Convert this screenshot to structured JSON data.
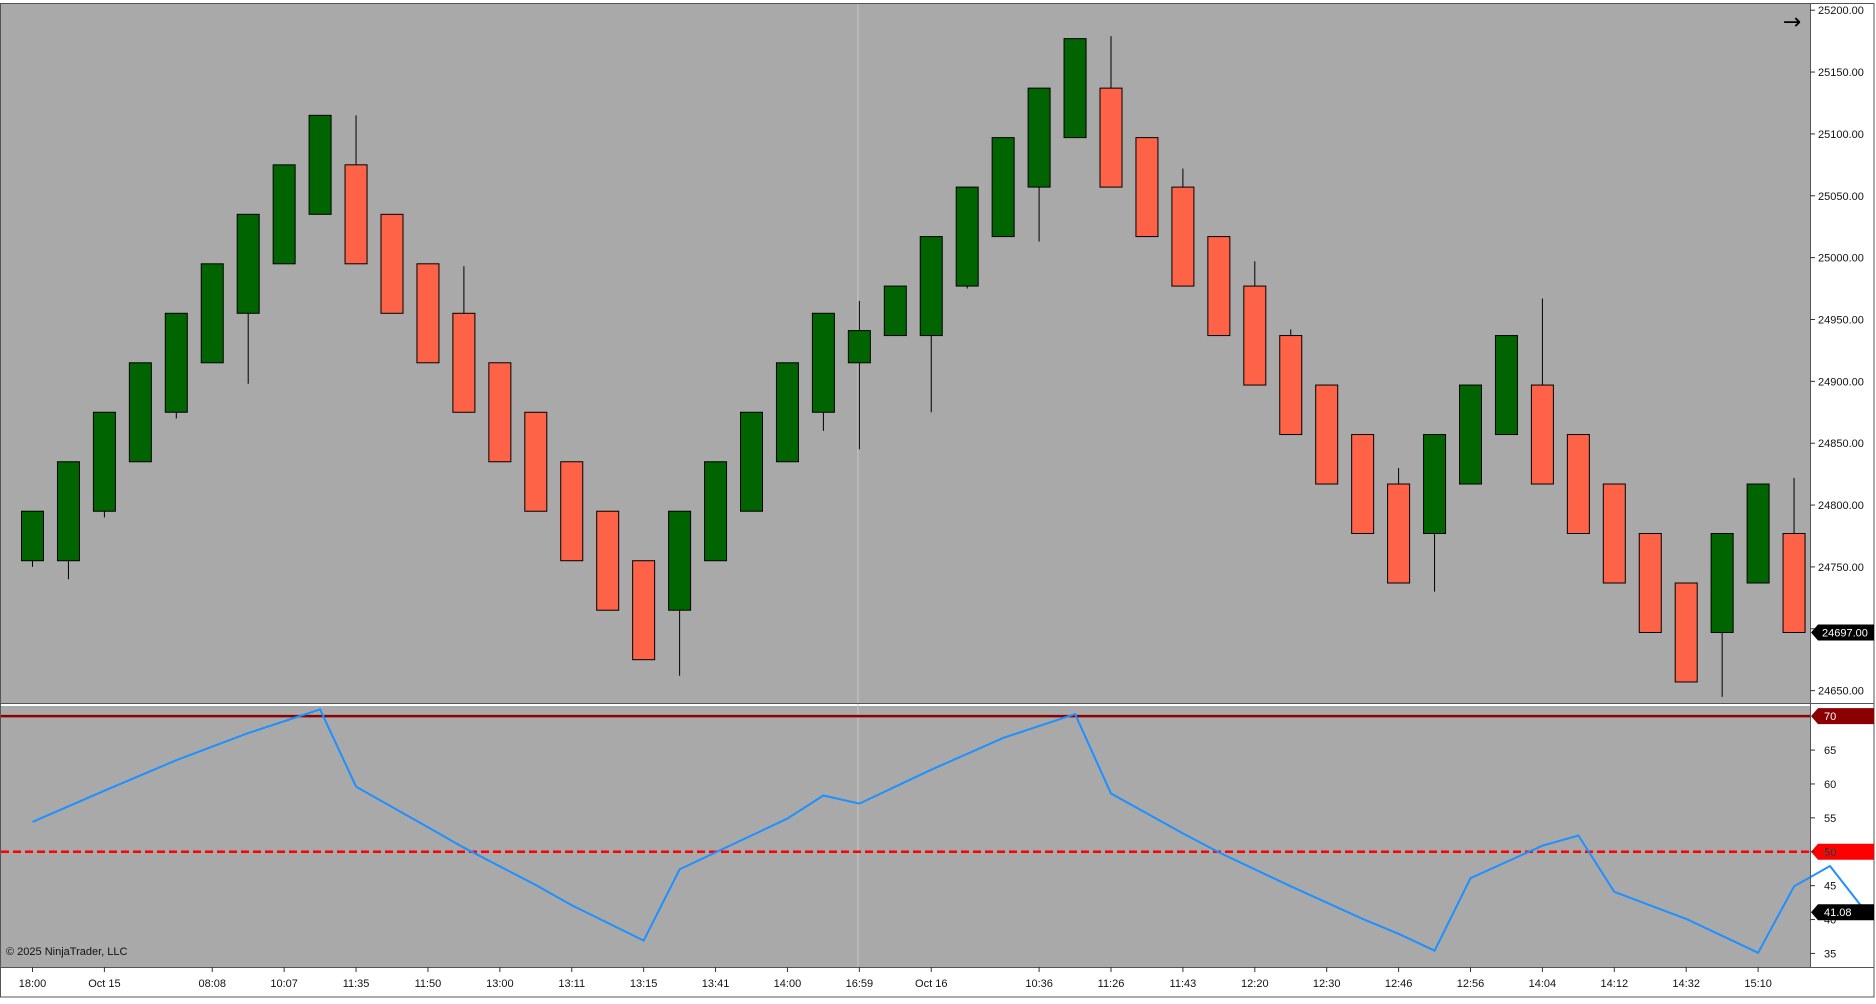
{
  "copyright": "© 2025 NinjaTrader, LLC",
  "nav_arrow_icon": "arrow-right-icon",
  "colors": {
    "background": "#a9a9a9",
    "up_candle": "#006400",
    "down_candle": "#ff6347",
    "rsi_line": "#1e90ff",
    "overbought_line": "#8b0000",
    "midline": "#ff0000",
    "price_marker": "#000000"
  },
  "chart_data": [
    {
      "type": "candlestick",
      "title": "",
      "x_tick_labels": [
        "18:00",
        "Oct 15",
        "08:08",
        "10:07",
        "11:35",
        "11:50",
        "13:00",
        "13:11",
        "13:15",
        "13:41",
        "14:00",
        "16:59",
        "Oct 16",
        "10:36",
        "11:26",
        "11:43",
        "12:20",
        "12:30",
        "12:46",
        "12:56",
        "14:04",
        "14:12",
        "14:32",
        "15:10"
      ],
      "x_tick_bar_index": [
        0,
        2,
        5,
        7,
        9,
        11,
        13,
        15,
        17,
        19,
        21,
        23,
        25,
        28,
        30,
        32,
        34,
        36,
        38,
        40,
        42,
        44,
        46,
        48
      ],
      "y_ticks": [
        "24650.00",
        "24700.00",
        "24750.00",
        "24800.00",
        "24850.00",
        "24900.00",
        "24950.00",
        "25000.00",
        "25050.00",
        "25100.00",
        "25150.00",
        "25200.00"
      ],
      "ylim": [
        24640,
        25205
      ],
      "last_price": 24697.0,
      "last_price_label": "24697.00",
      "candles": [
        {
          "o": 24755,
          "h": 24795,
          "l": 24750,
          "c": 24795
        },
        {
          "o": 24755,
          "h": 24835,
          "l": 24740,
          "c": 24835
        },
        {
          "o": 24795,
          "h": 24875,
          "l": 24790,
          "c": 24875
        },
        {
          "o": 24835,
          "h": 24915,
          "l": 24835,
          "c": 24915
        },
        {
          "o": 24875,
          "h": 24955,
          "l": 24870,
          "c": 24955
        },
        {
          "o": 24915,
          "h": 24995,
          "l": 24915,
          "c": 24995
        },
        {
          "o": 24955,
          "h": 25035,
          "l": 24898,
          "c": 25035
        },
        {
          "o": 24995,
          "h": 25075,
          "l": 24995,
          "c": 25075
        },
        {
          "o": 25035,
          "h": 25115,
          "l": 25035,
          "c": 25115
        },
        {
          "o": 25075,
          "h": 25115,
          "l": 24995,
          "c": 24995
        },
        {
          "o": 25035,
          "h": 25035,
          "l": 24955,
          "c": 24955
        },
        {
          "o": 24995,
          "h": 24995,
          "l": 24915,
          "c": 24915
        },
        {
          "o": 24955,
          "h": 24993,
          "l": 24875,
          "c": 24875
        },
        {
          "o": 24915,
          "h": 24915,
          "l": 24835,
          "c": 24835
        },
        {
          "o": 24875,
          "h": 24875,
          "l": 24795,
          "c": 24795
        },
        {
          "o": 24835,
          "h": 24835,
          "l": 24755,
          "c": 24755
        },
        {
          "o": 24795,
          "h": 24795,
          "l": 24715,
          "c": 24715
        },
        {
          "o": 24755,
          "h": 24755,
          "l": 24675,
          "c": 24675
        },
        {
          "o": 24715,
          "h": 24795,
          "l": 24662,
          "c": 24795
        },
        {
          "o": 24755,
          "h": 24835,
          "l": 24755,
          "c": 24835
        },
        {
          "o": 24795,
          "h": 24875,
          "l": 24795,
          "c": 24875
        },
        {
          "o": 24835,
          "h": 24915,
          "l": 24835,
          "c": 24915
        },
        {
          "o": 24875,
          "h": 24955,
          "l": 24860,
          "c": 24955
        },
        {
          "o": 24915,
          "h": 24965,
          "l": 24845,
          "c": 24941
        },
        {
          "o": 24937,
          "h": 24977,
          "l": 24937,
          "c": 24977
        },
        {
          "o": 24937,
          "h": 25017,
          "l": 24875,
          "c": 25017
        },
        {
          "o": 24977,
          "h": 25057,
          "l": 24975,
          "c": 25057
        },
        {
          "o": 25017,
          "h": 25097,
          "l": 25017,
          "c": 25097
        },
        {
          "o": 25057,
          "h": 25137,
          "l": 25013,
          "c": 25137
        },
        {
          "o": 25097,
          "h": 25177,
          "l": 25097,
          "c": 25177
        },
        {
          "o": 25137,
          "h": 25179,
          "l": 25057,
          "c": 25057
        },
        {
          "o": 25097,
          "h": 25097,
          "l": 25017,
          "c": 25017
        },
        {
          "o": 25057,
          "h": 25072,
          "l": 24977,
          "c": 24977
        },
        {
          "o": 25017,
          "h": 25017,
          "l": 24937,
          "c": 24937
        },
        {
          "o": 24977,
          "h": 24997,
          "l": 24897,
          "c": 24897
        },
        {
          "o": 24937,
          "h": 24942,
          "l": 24857,
          "c": 24857
        },
        {
          "o": 24897,
          "h": 24897,
          "l": 24817,
          "c": 24817
        },
        {
          "o": 24857,
          "h": 24857,
          "l": 24777,
          "c": 24777
        },
        {
          "o": 24817,
          "h": 24830,
          "l": 24737,
          "c": 24737
        },
        {
          "o": 24777,
          "h": 24857,
          "l": 24730,
          "c": 24857
        },
        {
          "o": 24817,
          "h": 24897,
          "l": 24817,
          "c": 24897
        },
        {
          "o": 24857,
          "h": 24937,
          "l": 24857,
          "c": 24937
        },
        {
          "o": 24897,
          "h": 24967,
          "l": 24817,
          "c": 24817
        },
        {
          "o": 24857,
          "h": 24857,
          "l": 24777,
          "c": 24777
        },
        {
          "o": 24817,
          "h": 24817,
          "l": 24737,
          "c": 24737
        },
        {
          "o": 24777,
          "h": 24777,
          "l": 24697,
          "c": 24697
        },
        {
          "o": 24737,
          "h": 24737,
          "l": 24657,
          "c": 24657
        },
        {
          "o": 24697,
          "h": 24777,
          "l": 24645,
          "c": 24777
        },
        {
          "o": 24737,
          "h": 24817,
          "l": 24737,
          "c": 24817
        },
        {
          "o": 24777,
          "h": 24822,
          "l": 24697,
          "c": 24697
        }
      ]
    },
    {
      "type": "line",
      "title": "",
      "ylim": [
        33,
        71.5
      ],
      "y_ticks": [
        "35",
        "40",
        "45",
        "50",
        "55",
        "60",
        "65"
      ],
      "levels": [
        {
          "value": 70,
          "label": "70",
          "style": "solid"
        },
        {
          "value": 50,
          "label": "50",
          "style": "dashed"
        }
      ],
      "last_value": 41.08,
      "last_value_label": "41.08",
      "series": [
        {
          "points": [
            [
              0,
              54.4
            ],
            [
              2,
              59.0
            ],
            [
              4,
              63.5
            ],
            [
              6,
              67.5
            ],
            [
              8,
              71.0
            ],
            [
              9,
              59.6
            ],
            [
              11,
              53.6
            ],
            [
              12,
              50.6
            ],
            [
              14,
              45.1
            ],
            [
              15,
              42.1
            ],
            [
              17,
              36.9
            ],
            [
              18,
              47.4
            ],
            [
              19,
              49.9
            ],
            [
              21,
              54.9
            ],
            [
              22,
              58.3
            ],
            [
              23,
              57.1
            ],
            [
              25,
              62.1
            ],
            [
              27,
              66.8
            ],
            [
              29,
              70.3
            ],
            [
              30,
              58.6
            ],
            [
              32,
              52.7
            ],
            [
              33,
              49.9
            ],
            [
              35,
              44.9
            ],
            [
              37,
              40.1
            ],
            [
              38,
              37.9
            ],
            [
              39,
              35.4
            ],
            [
              40,
              46.1
            ],
            [
              42,
              50.9
            ],
            [
              43,
              52.4
            ],
            [
              44,
              44.1
            ],
            [
              46,
              40.1
            ],
            [
              47,
              37.6
            ],
            [
              48,
              35.1
            ],
            [
              49,
              44.9
            ],
            [
              50,
              47.9
            ],
            [
              51,
              41.1
            ]
          ]
        }
      ]
    }
  ]
}
